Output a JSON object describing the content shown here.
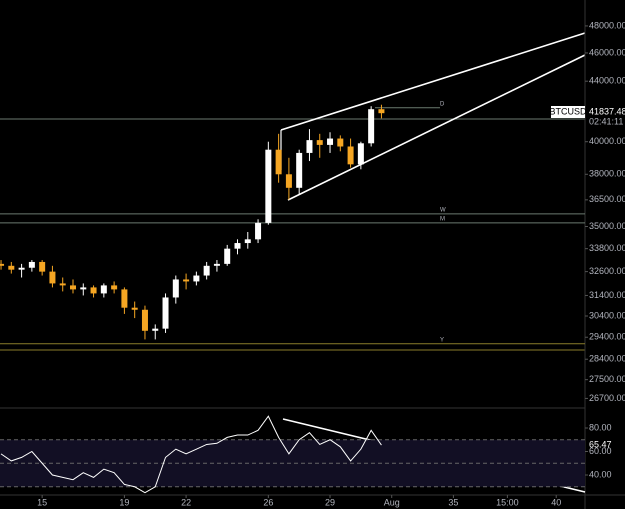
{
  "chart_data": {
    "type": "candlestick",
    "symbol": "BTCUSD",
    "last_price": 41837.48,
    "countdown": "02:41:11",
    "log_scale": true,
    "up_color": "#ffffff",
    "down_color": "#f5a623",
    "x": [
      13,
      13.5,
      14,
      14.5,
      15,
      15.5,
      16,
      16.5,
      17,
      17.5,
      18,
      18.5,
      19,
      19.5,
      20,
      20.5,
      21,
      21.5,
      22,
      22.5,
      23,
      23.5,
      24,
      24.5,
      25,
      25.5,
      26,
      26.5,
      27,
      27.5,
      28,
      28.5,
      29,
      29.5,
      30,
      30.5,
      31,
      31.5
    ],
    "open": [
      33000,
      32900,
      32700,
      32800,
      33100,
      32600,
      32000,
      31900,
      31700,
      31800,
      31500,
      31900,
      31700,
      30800,
      30700,
      29700,
      29800,
      31300,
      32200,
      32100,
      32400,
      32900,
      33000,
      33800,
      34100,
      34300,
      35200,
      39500,
      38000,
      37200,
      39300,
      40100,
      39800,
      40200,
      39700,
      38600,
      39900,
      42100
    ],
    "high": [
      33200,
      33100,
      33000,
      33200,
      33200,
      32900,
      32300,
      32200,
      32000,
      31900,
      32000,
      32100,
      31800,
      31100,
      30900,
      30000,
      31500,
      32400,
      32500,
      32600,
      33100,
      33200,
      34000,
      34300,
      34700,
      35400,
      40000,
      40500,
      39000,
      39500,
      40800,
      40500,
      40600,
      40400,
      40200,
      40000,
      42300,
      42400
    ],
    "low": [
      32700,
      32500,
      32300,
      32600,
      32400,
      31800,
      31600,
      31500,
      31400,
      31300,
      31300,
      31500,
      30500,
      30300,
      29300,
      29300,
      29600,
      31000,
      31700,
      31900,
      32200,
      32600,
      32900,
      33500,
      33800,
      34100,
      35100,
      37500,
      36500,
      36800,
      38800,
      39000,
      39300,
      39400,
      38400,
      38300,
      39700,
      41500
    ],
    "close": [
      32900,
      32700,
      32800,
      33100,
      32600,
      32000,
      31900,
      31700,
      31800,
      31500,
      31900,
      31700,
      30800,
      30700,
      29700,
      29800,
      31300,
      32200,
      32100,
      32400,
      32900,
      33000,
      33800,
      34100,
      34300,
      35200,
      39500,
      38000,
      37200,
      39300,
      40100,
      39800,
      40200,
      39700,
      38600,
      39900,
      42100,
      41837.48
    ],
    "xlim": [
      12.95,
      41.4
    ],
    "xticks": [
      15,
      19,
      22,
      26,
      29,
      {
        "value": 32,
        "label": "Aug"
      },
      35,
      {
        "value": 37.625,
        "label": "15:00"
      },
      40
    ],
    "ylim": [
      26300,
      50000
    ],
    "yticks": [
      {
        "value": 48000,
        "label": "48000.00"
      },
      {
        "value": 46000,
        "label": "46000.00"
      },
      {
        "value": 44000,
        "label": "44000.00"
      },
      {
        "value": 40000,
        "label": "40000.00"
      },
      {
        "value": 38000,
        "label": "38000.00"
      },
      {
        "value": 36500,
        "label": "36500.00"
      },
      {
        "value": 35000,
        "label": "35000.00"
      },
      {
        "value": 33800,
        "label": "33800.00"
      },
      {
        "value": 32600,
        "label": "32600.00"
      },
      {
        "value": 31400,
        "label": "31400.00"
      },
      {
        "value": 30400,
        "label": "30400.00"
      },
      {
        "value": 29400,
        "label": "29400.00"
      },
      {
        "value": 28400,
        "label": "28400.00"
      },
      {
        "value": 27500,
        "label": "27500.00"
      },
      {
        "value": 26700,
        "label": "26700.00"
      }
    ],
    "levels": [
      {
        "label": "D",
        "value": 42200
      },
      {
        "label": "W",
        "value": 35700
      },
      {
        "label": "M",
        "value": 35200
      },
      {
        "label": "Y",
        "value": 29100
      }
    ],
    "rsi": {
      "values": [
        58,
        52,
        55,
        60,
        50,
        40,
        38,
        36,
        42,
        38,
        45,
        42,
        32,
        30,
        25,
        30,
        55,
        62,
        58,
        62,
        66,
        67,
        72,
        74,
        74,
        78,
        90,
        72,
        58,
        70,
        76,
        66,
        70,
        64,
        52,
        62,
        78,
        65.47
      ],
      "ylim": [
        23,
        95.3
      ],
      "yticks": [
        {
          "value": 80,
          "label": "80.00"
        },
        {
          "value": 60,
          "label": "60.00"
        },
        {
          "value": 40,
          "label": "40.00"
        }
      ],
      "bands": [
        30,
        50,
        70
      ]
    }
  }
}
